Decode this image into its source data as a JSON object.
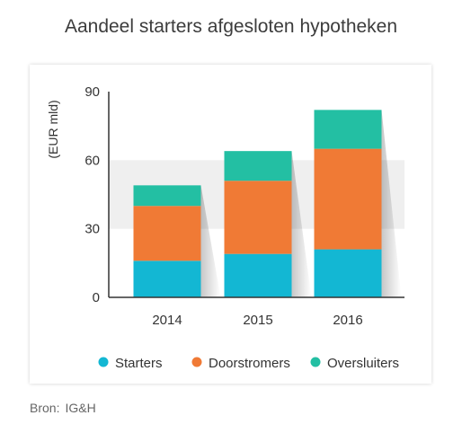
{
  "title": "Aandeel starters afgesloten hypotheken",
  "source": {
    "label": "Bron:",
    "value": "IG&H"
  },
  "colors": {
    "Starters": "#13b7d3",
    "Doorstromers": "#f07a35",
    "Oversluiters": "#23bfa3"
  },
  "chart_data": {
    "type": "bar",
    "stacked": true,
    "title": "Aandeel starters afgesloten hypotheken",
    "ylabel": "(EUR mld)",
    "xlabel": "",
    "ylim": [
      0,
      90
    ],
    "yticks": [
      0,
      30,
      60,
      90
    ],
    "categories": [
      "2014",
      "2015",
      "2016"
    ],
    "series": [
      {
        "name": "Starters",
        "values": [
          16,
          19,
          21
        ]
      },
      {
        "name": "Doorstromers",
        "values": [
          24,
          32,
          44
        ]
      },
      {
        "name": "Oversluiters",
        "values": [
          9,
          13,
          17
        ]
      }
    ],
    "legend_position": "bottom",
    "highlight_band": [
      30,
      60
    ]
  }
}
